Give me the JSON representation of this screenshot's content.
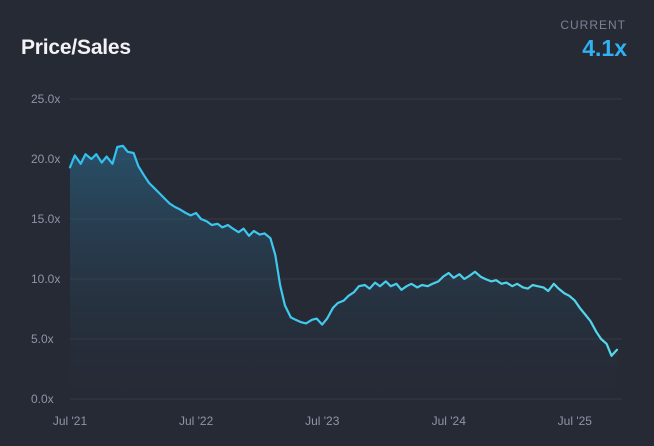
{
  "header": {
    "title": "Price/Sales",
    "current_label": "CURRENT",
    "current_value": "4.1x"
  },
  "colors": {
    "background": "#262a35",
    "line": "#31bff0",
    "line_end": "#56d8ec",
    "grid": "#353a47",
    "accent": "#2fb1f2"
  },
  "chart_data": {
    "type": "area",
    "title": "Price/Sales",
    "xlabel": "",
    "ylabel": "",
    "ylim": [
      0,
      25
    ],
    "xlim": [
      "2021-07-01",
      "2025-10-31"
    ],
    "y_ticks": [
      0,
      5,
      10,
      15,
      20,
      25
    ],
    "y_tick_labels": [
      "0.0x",
      "5.0x",
      "10.0x",
      "15.0x",
      "20.0x",
      "25.0x"
    ],
    "x_tick_labels": [
      {
        "label": "Jul '21",
        "date": "2021-07-01"
      },
      {
        "label": "Jul '22",
        "date": "2022-07-01"
      },
      {
        "label": "Jul '23",
        "date": "2023-07-01"
      },
      {
        "label": "Jul '24",
        "date": "2024-07-01"
      },
      {
        "label": "Jul '25",
        "date": "2025-07-01"
      }
    ],
    "grid": true,
    "series": [
      {
        "values": [
          [
            "2021-07-01",
            19.3
          ],
          [
            "2021-07-15",
            20.3
          ],
          [
            "2021-08-01",
            19.6
          ],
          [
            "2021-08-15",
            20.4
          ],
          [
            "2021-09-01",
            20.0
          ],
          [
            "2021-09-15",
            20.4
          ],
          [
            "2021-10-01",
            19.7
          ],
          [
            "2021-10-15",
            20.2
          ],
          [
            "2021-11-01",
            19.6
          ],
          [
            "2021-11-15",
            21.0
          ],
          [
            "2021-12-01",
            21.1
          ],
          [
            "2021-12-15",
            20.6
          ],
          [
            "2022-01-01",
            20.5
          ],
          [
            "2022-01-15",
            19.4
          ],
          [
            "2022-02-01",
            18.6
          ],
          [
            "2022-02-15",
            18.0
          ],
          [
            "2022-03-01",
            17.6
          ],
          [
            "2022-03-15",
            17.2
          ],
          [
            "2022-04-01",
            16.7
          ],
          [
            "2022-04-15",
            16.3
          ],
          [
            "2022-05-01",
            16.0
          ],
          [
            "2022-05-15",
            15.8
          ],
          [
            "2022-06-01",
            15.5
          ],
          [
            "2022-06-15",
            15.3
          ],
          [
            "2022-07-01",
            15.5
          ],
          [
            "2022-07-15",
            15.0
          ],
          [
            "2022-08-01",
            14.8
          ],
          [
            "2022-08-15",
            14.5
          ],
          [
            "2022-09-01",
            14.6
          ],
          [
            "2022-09-15",
            14.3
          ],
          [
            "2022-10-01",
            14.5
          ],
          [
            "2022-10-15",
            14.2
          ],
          [
            "2022-11-01",
            13.9
          ],
          [
            "2022-11-15",
            14.2
          ],
          [
            "2022-12-01",
            13.6
          ],
          [
            "2022-12-15",
            14.0
          ],
          [
            "2023-01-01",
            13.7
          ],
          [
            "2023-01-15",
            13.8
          ],
          [
            "2023-02-01",
            13.4
          ],
          [
            "2023-02-15",
            12.0
          ],
          [
            "2023-03-01",
            9.5
          ],
          [
            "2023-03-15",
            7.8
          ],
          [
            "2023-04-01",
            6.8
          ],
          [
            "2023-04-15",
            6.6
          ],
          [
            "2023-05-01",
            6.4
          ],
          [
            "2023-05-15",
            6.3
          ],
          [
            "2023-06-01",
            6.6
          ],
          [
            "2023-06-15",
            6.7
          ],
          [
            "2023-07-01",
            6.2
          ],
          [
            "2023-07-15",
            6.7
          ],
          [
            "2023-08-01",
            7.6
          ],
          [
            "2023-08-15",
            8.0
          ],
          [
            "2023-09-01",
            8.2
          ],
          [
            "2023-09-15",
            8.6
          ],
          [
            "2023-10-01",
            8.9
          ],
          [
            "2023-10-15",
            9.4
          ],
          [
            "2023-11-01",
            9.5
          ],
          [
            "2023-11-15",
            9.2
          ],
          [
            "2023-12-01",
            9.7
          ],
          [
            "2023-12-15",
            9.4
          ],
          [
            "2024-01-01",
            9.8
          ],
          [
            "2024-01-15",
            9.4
          ],
          [
            "2024-02-01",
            9.6
          ],
          [
            "2024-02-15",
            9.1
          ],
          [
            "2024-03-01",
            9.4
          ],
          [
            "2024-03-15",
            9.6
          ],
          [
            "2024-04-01",
            9.3
          ],
          [
            "2024-04-15",
            9.5
          ],
          [
            "2024-05-01",
            9.4
          ],
          [
            "2024-05-15",
            9.6
          ],
          [
            "2024-06-01",
            9.8
          ],
          [
            "2024-06-15",
            10.2
          ],
          [
            "2024-07-01",
            10.5
          ],
          [
            "2024-07-15",
            10.1
          ],
          [
            "2024-08-01",
            10.4
          ],
          [
            "2024-08-15",
            10.0
          ],
          [
            "2024-09-01",
            10.3
          ],
          [
            "2024-09-15",
            10.6
          ],
          [
            "2024-10-01",
            10.2
          ],
          [
            "2024-10-15",
            10.0
          ],
          [
            "2024-11-01",
            9.8
          ],
          [
            "2024-11-15",
            9.9
          ],
          [
            "2024-12-01",
            9.6
          ],
          [
            "2024-12-15",
            9.7
          ],
          [
            "2025-01-01",
            9.4
          ],
          [
            "2025-01-15",
            9.6
          ],
          [
            "2025-02-01",
            9.3
          ],
          [
            "2025-02-15",
            9.2
          ],
          [
            "2025-03-01",
            9.5
          ],
          [
            "2025-03-15",
            9.4
          ],
          [
            "2025-04-01",
            9.3
          ],
          [
            "2025-04-15",
            9.0
          ],
          [
            "2025-05-01",
            9.6
          ],
          [
            "2025-05-15",
            9.2
          ],
          [
            "2025-06-01",
            8.8
          ],
          [
            "2025-06-15",
            8.6
          ],
          [
            "2025-07-01",
            8.2
          ],
          [
            "2025-07-15",
            7.6
          ],
          [
            "2025-08-01",
            7.0
          ],
          [
            "2025-08-15",
            6.5
          ],
          [
            "2025-09-01",
            5.6
          ],
          [
            "2025-09-15",
            5.0
          ],
          [
            "2025-10-01",
            4.6
          ],
          [
            "2025-10-15",
            3.6
          ],
          [
            "2025-10-31",
            4.1
          ]
        ]
      }
    ]
  }
}
